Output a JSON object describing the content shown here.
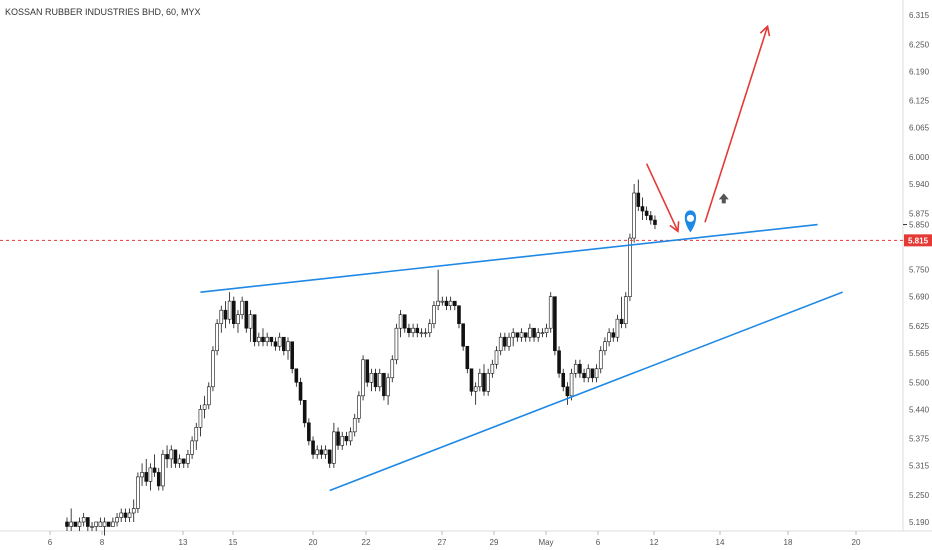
{
  "chart_data": {
    "type": "candlestick",
    "title": "KOSSAN RUBBER INDUSTRIES BHD, 60, MYX",
    "x_ticks": [
      "6",
      "8",
      "13",
      "15",
      "20",
      "22",
      "27",
      "29",
      "May",
      "6",
      "12",
      "14",
      "18",
      "20"
    ],
    "y_ticks": [
      "6.315",
      "6.250",
      "6.190",
      "6.125",
      "6.065",
      "6.000",
      "5.940",
      "5.875",
      "5.850",
      "5.815",
      "5.750",
      "5.690",
      "5.625",
      "5.565",
      "5.500",
      "5.440",
      "5.375",
      "5.315",
      "5.250",
      "5.190"
    ],
    "ylim": [
      5.17,
      6.335
    ],
    "current_price": {
      "label": "5.815",
      "value": 5.815,
      "color": "#e53935"
    },
    "close_marker": {
      "label": "5.850",
      "value": 5.85
    },
    "candles": [
      [
        5.19,
        5.2,
        5.17,
        5.18
      ],
      [
        5.18,
        5.22,
        5.17,
        5.19
      ],
      [
        5.19,
        5.19,
        5.18,
        5.18
      ],
      [
        5.18,
        5.2,
        5.17,
        5.19
      ],
      [
        5.19,
        5.21,
        5.18,
        5.2
      ],
      [
        5.2,
        5.19,
        5.17,
        5.18
      ],
      [
        5.18,
        5.19,
        5.17,
        5.18
      ],
      [
        5.18,
        5.19,
        5.17,
        5.19
      ],
      [
        5.18,
        5.2,
        5.18,
        5.19
      ],
      [
        5.18,
        5.2,
        5.16,
        5.19
      ],
      [
        5.19,
        5.19,
        5.18,
        5.18
      ],
      [
        5.18,
        5.2,
        5.18,
        5.19
      ],
      [
        5.19,
        5.21,
        5.18,
        5.2
      ],
      [
        5.2,
        5.22,
        5.19,
        5.21
      ],
      [
        5.21,
        5.22,
        5.19,
        5.2
      ],
      [
        5.2,
        5.22,
        5.19,
        5.21
      ],
      [
        5.21,
        5.24,
        5.19,
        5.22
      ],
      [
        5.22,
        5.3,
        5.21,
        5.29
      ],
      [
        5.29,
        5.32,
        5.27,
        5.3
      ],
      [
        5.3,
        5.33,
        5.27,
        5.28
      ],
      [
        5.28,
        5.32,
        5.26,
        5.31
      ],
      [
        5.31,
        5.34,
        5.29,
        5.3
      ],
      [
        5.3,
        5.31,
        5.26,
        5.27
      ],
      [
        5.27,
        5.35,
        5.26,
        5.34
      ],
      [
        5.34,
        5.36,
        5.31,
        5.33
      ],
      [
        5.33,
        5.36,
        5.31,
        5.35
      ],
      [
        5.35,
        5.34,
        5.31,
        5.32
      ],
      [
        5.32,
        5.34,
        5.31,
        5.33
      ],
      [
        5.33,
        5.33,
        5.31,
        5.32
      ],
      [
        5.32,
        5.35,
        5.31,
        5.34
      ],
      [
        5.34,
        5.38,
        5.33,
        5.37
      ],
      [
        5.37,
        5.41,
        5.35,
        5.4
      ],
      [
        5.4,
        5.45,
        5.38,
        5.44
      ],
      [
        5.44,
        5.47,
        5.42,
        5.45
      ],
      [
        5.45,
        5.5,
        5.44,
        5.49
      ],
      [
        5.49,
        5.58,
        5.48,
        5.57
      ],
      [
        5.57,
        5.64,
        5.56,
        5.63
      ],
      [
        5.63,
        5.67,
        5.61,
        5.66
      ],
      [
        5.66,
        5.68,
        5.62,
        5.64
      ],
      [
        5.64,
        5.7,
        5.63,
        5.68
      ],
      [
        5.68,
        5.69,
        5.62,
        5.63
      ],
      [
        5.63,
        5.66,
        5.61,
        5.65
      ],
      [
        5.65,
        5.69,
        5.64,
        5.68
      ],
      [
        5.68,
        5.67,
        5.61,
        5.62
      ],
      [
        5.62,
        5.66,
        5.59,
        5.65
      ],
      [
        5.65,
        5.64,
        5.58,
        5.59
      ],
      [
        5.59,
        5.61,
        5.58,
        5.6
      ],
      [
        5.6,
        5.62,
        5.58,
        5.59
      ],
      [
        5.59,
        5.61,
        5.58,
        5.6
      ],
      [
        5.6,
        5.6,
        5.58,
        5.59
      ],
      [
        5.59,
        5.6,
        5.57,
        5.58
      ],
      [
        5.58,
        5.61,
        5.57,
        5.6
      ],
      [
        5.6,
        5.59,
        5.56,
        5.57
      ],
      [
        5.57,
        5.6,
        5.55,
        5.59
      ],
      [
        5.59,
        5.58,
        5.52,
        5.53
      ],
      [
        5.53,
        5.53,
        5.49,
        5.5
      ],
      [
        5.5,
        5.51,
        5.45,
        5.46
      ],
      [
        5.46,
        5.46,
        5.4,
        5.41
      ],
      [
        5.41,
        5.42,
        5.36,
        5.37
      ],
      [
        5.37,
        5.38,
        5.33,
        5.34
      ],
      [
        5.34,
        5.36,
        5.33,
        5.35
      ],
      [
        5.35,
        5.36,
        5.33,
        5.34
      ],
      [
        5.34,
        5.36,
        5.33,
        5.35
      ],
      [
        5.35,
        5.34,
        5.31,
        5.32
      ],
      [
        5.32,
        5.41,
        5.31,
        5.39
      ],
      [
        5.39,
        5.4,
        5.35,
        5.36
      ],
      [
        5.36,
        5.39,
        5.35,
        5.38
      ],
      [
        5.38,
        5.39,
        5.36,
        5.37
      ],
      [
        5.37,
        5.4,
        5.36,
        5.39
      ],
      [
        5.39,
        5.43,
        5.38,
        5.42
      ],
      [
        5.42,
        5.48,
        5.41,
        5.47
      ],
      [
        5.47,
        5.56,
        5.46,
        5.55
      ],
      [
        5.55,
        5.54,
        5.49,
        5.5
      ],
      [
        5.5,
        5.53,
        5.48,
        5.52
      ],
      [
        5.52,
        5.53,
        5.48,
        5.49
      ],
      [
        5.49,
        5.53,
        5.48,
        5.52
      ],
      [
        5.52,
        5.51,
        5.46,
        5.47
      ],
      [
        5.47,
        5.52,
        5.45,
        5.51
      ],
      [
        5.51,
        5.56,
        5.5,
        5.55
      ],
      [
        5.55,
        5.63,
        5.54,
        5.62
      ],
      [
        5.62,
        5.66,
        5.6,
        5.65
      ],
      [
        5.65,
        5.64,
        5.61,
        5.62
      ],
      [
        5.62,
        5.63,
        5.6,
        5.61
      ],
      [
        5.61,
        5.63,
        5.6,
        5.62
      ],
      [
        5.62,
        5.63,
        5.6,
        5.61
      ],
      [
        5.61,
        5.62,
        5.6,
        5.61
      ],
      [
        5.61,
        5.62,
        5.6,
        5.61
      ],
      [
        5.61,
        5.64,
        5.6,
        5.63
      ],
      [
        5.63,
        5.68,
        5.62,
        5.67
      ],
      [
        5.67,
        5.75,
        5.66,
        5.68
      ],
      [
        5.68,
        5.69,
        5.67,
        5.68
      ],
      [
        5.68,
        5.69,
        5.66,
        5.67
      ],
      [
        5.67,
        5.69,
        5.66,
        5.68
      ],
      [
        5.68,
        5.68,
        5.66,
        5.67
      ],
      [
        5.67,
        5.66,
        5.62,
        5.63
      ],
      [
        5.63,
        5.63,
        5.57,
        5.58
      ],
      [
        5.58,
        5.58,
        5.52,
        5.53
      ],
      [
        5.53,
        5.53,
        5.47,
        5.48
      ],
      [
        5.48,
        5.5,
        5.45,
        5.49
      ],
      [
        5.49,
        5.53,
        5.48,
        5.52
      ],
      [
        5.52,
        5.54,
        5.47,
        5.48
      ],
      [
        5.48,
        5.53,
        5.47,
        5.52
      ],
      [
        5.52,
        5.55,
        5.51,
        5.54
      ],
      [
        5.54,
        5.58,
        5.53,
        5.57
      ],
      [
        5.57,
        5.61,
        5.56,
        5.6
      ],
      [
        5.6,
        5.61,
        5.57,
        5.58
      ],
      [
        5.58,
        5.61,
        5.57,
        5.6
      ],
      [
        5.6,
        5.62,
        5.58,
        5.61
      ],
      [
        5.61,
        5.61,
        5.59,
        5.6
      ],
      [
        5.6,
        5.62,
        5.59,
        5.61
      ],
      [
        5.61,
        5.61,
        5.59,
        5.6
      ],
      [
        5.6,
        5.63,
        5.59,
        5.62
      ],
      [
        5.62,
        5.61,
        5.59,
        5.6
      ],
      [
        5.6,
        5.62,
        5.59,
        5.61
      ],
      [
        5.61,
        5.62,
        5.6,
        5.61
      ],
      [
        5.61,
        5.63,
        5.6,
        5.62
      ],
      [
        5.62,
        5.7,
        5.61,
        5.69
      ],
      [
        5.69,
        5.69,
        5.56,
        5.57
      ],
      [
        5.57,
        5.58,
        5.51,
        5.52
      ],
      [
        5.52,
        5.53,
        5.48,
        5.49
      ],
      [
        5.49,
        5.5,
        5.45,
        5.47
      ],
      [
        5.47,
        5.53,
        5.46,
        5.52
      ],
      [
        5.52,
        5.55,
        5.51,
        5.54
      ],
      [
        5.54,
        5.55,
        5.51,
        5.52
      ],
      [
        5.52,
        5.53,
        5.5,
        5.51
      ],
      [
        5.51,
        5.54,
        5.5,
        5.53
      ],
      [
        5.53,
        5.53,
        5.5,
        5.51
      ],
      [
        5.51,
        5.54,
        5.5,
        5.53
      ],
      [
        5.53,
        5.58,
        5.52,
        5.57
      ],
      [
        5.57,
        5.6,
        5.56,
        5.59
      ],
      [
        5.59,
        5.62,
        5.58,
        5.61
      ],
      [
        5.61,
        5.62,
        5.59,
        5.6
      ],
      [
        5.6,
        5.65,
        5.59,
        5.64
      ],
      [
        5.64,
        5.69,
        5.62,
        5.63
      ],
      [
        5.63,
        5.7,
        5.62,
        5.69
      ],
      [
        5.69,
        5.83,
        5.68,
        5.82
      ],
      [
        5.82,
        5.94,
        5.81,
        5.92
      ],
      [
        5.92,
        5.95,
        5.88,
        5.89
      ],
      [
        5.89,
        5.91,
        5.86,
        5.88
      ],
      [
        5.88,
        5.89,
        5.86,
        5.87
      ],
      [
        5.87,
        5.88,
        5.85,
        5.86
      ],
      [
        5.86,
        5.87,
        5.84,
        5.85
      ]
    ],
    "trendlines": [
      {
        "name": "upper-trendline",
        "color": "#1e88e5",
        "from": [
          32,
          5.7
        ],
        "to": [
          180,
          5.85
        ]
      },
      {
        "name": "lower-trendline",
        "color": "#1e88e5",
        "from": [
          63,
          5.26
        ],
        "to": [
          186,
          5.7
        ]
      }
    ],
    "arrows": [
      {
        "name": "pullback-arrow",
        "color": "#e53935",
        "from": [
          139,
          5.985
        ],
        "to": [
          146.5,
          5.835
        ]
      },
      {
        "name": "target-arrow",
        "color": "#e53935",
        "from": [
          153,
          5.855
        ],
        "to": [
          168,
          6.29
        ]
      }
    ],
    "pin": {
      "at": [
        149.5,
        5.835
      ],
      "color": "#1e88e5"
    },
    "up_marker": {
      "at": [
        157.5,
        5.908
      ],
      "color": "#555555"
    }
  }
}
